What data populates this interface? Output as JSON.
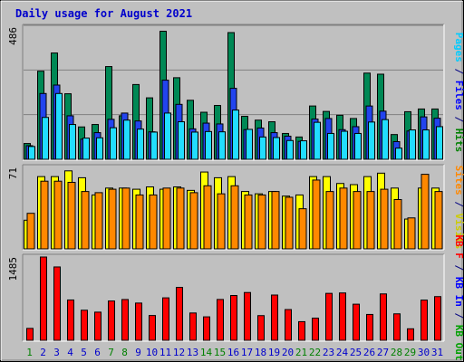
{
  "title": "Daily usage for August 2021",
  "colors": {
    "background": "#c0c0c0",
    "title": "#0000cc",
    "hits": "#006633",
    "hits_fill": "#008855",
    "files": "#0000ff",
    "files_fill": "#2244ee",
    "pages": "#00ccff",
    "pages_fill": "#22ddff",
    "visits": "#ffff00",
    "sites": "#ff8800",
    "kbin": "#00a000",
    "kbout": "#0000ff",
    "kbf": "#ff0000",
    "weekend_day": "#008000",
    "weekday_day": "#0000cc"
  },
  "chart_data": [
    {
      "type": "bar",
      "panel": "hits-files-pages",
      "ymax_label": "486",
      "right_label_parts": [
        {
          "text": "Pages",
          "color": "#00ccff"
        },
        {
          "text": " / ",
          "color": "#000080"
        },
        {
          "text": "Files",
          "color": "#0000ff"
        },
        {
          "text": " / ",
          "color": "#000080"
        },
        {
          "text": "Hits",
          "color": "#008000"
        }
      ],
      "ymax": 486,
      "categories": [
        "1",
        "2",
        "3",
        "4",
        "5",
        "6",
        "7",
        "8",
        "9",
        "10",
        "11",
        "12",
        "13",
        "14",
        "15",
        "16",
        "17",
        "18",
        "19",
        "20",
        "21",
        "22",
        "23",
        "24",
        "25",
        "26",
        "27",
        "28",
        "29",
        "30",
        "31"
      ],
      "series": [
        {
          "name": "Hits",
          "values": [
            58,
            324,
            391,
            241,
            119,
            128,
            341,
            160,
            275,
            226,
            471,
            300,
            217,
            173,
            198,
            466,
            158,
            144,
            138,
            95,
            82,
            196,
            176,
            162,
            150,
            317,
            313,
            91,
            175,
            185,
            185
          ]
        },
        {
          "name": "Files",
          "values": [
            50,
            242,
            273,
            160,
            74,
            98,
            147,
            170,
            141,
            101,
            291,
            202,
            112,
            133,
            130,
            261,
            109,
            115,
            98,
            85,
            66,
            148,
            150,
            109,
            120,
            196,
            177,
            65,
            104,
            156,
            151
          ]
        },
        {
          "name": "Pages",
          "values": [
            47,
            154,
            242,
            128,
            78,
            79,
            116,
            144,
            111,
            100,
            170,
            138,
            100,
            102,
            101,
            181,
            110,
            82,
            80,
            69,
            68,
            136,
            95,
            103,
            95,
            137,
            146,
            41,
            108,
            108,
            120
          ]
        }
      ]
    },
    {
      "type": "bar",
      "panel": "visits-sites",
      "ymax_label": "71",
      "right_label_parts": [
        {
          "text": "Sites",
          "color": "#ff8800"
        },
        {
          "text": " / ",
          "color": "#000080"
        },
        {
          "text": "Visits",
          "color": "#cccc00"
        }
      ],
      "ymax": 71,
      "categories": [
        "1",
        "2",
        "3",
        "4",
        "5",
        "6",
        "7",
        "8",
        "9",
        "10",
        "11",
        "12",
        "13",
        "14",
        "15",
        "16",
        "17",
        "18",
        "19",
        "20",
        "21",
        "22",
        "23",
        "24",
        "25",
        "26",
        "27",
        "28",
        "29",
        "30",
        "31"
      ],
      "series": [
        {
          "name": "Visits",
          "values": [
            25,
            63,
            63,
            68,
            62,
            47,
            53,
            53,
            52,
            54,
            52,
            54,
            51,
            67,
            62,
            63,
            50,
            48,
            50,
            46,
            47,
            63,
            63,
            57,
            56,
            63,
            66,
            53,
            26,
            53,
            53
          ]
        },
        {
          "name": "Sites",
          "values": [
            31,
            59,
            59,
            58,
            50,
            49,
            52,
            53,
            47,
            47,
            53,
            53,
            49,
            55,
            48,
            55,
            47,
            47,
            50,
            45,
            35,
            60,
            50,
            53,
            50,
            50,
            52,
            43,
            27,
            65,
            50
          ]
        }
      ]
    },
    {
      "type": "bar",
      "panel": "kbytes",
      "ymax_label": "1485",
      "right_label_parts": [
        {
          "text": "KB F",
          "color": "#ff0000"
        },
        {
          "text": " / ",
          "color": "#000080"
        },
        {
          "text": "KB In",
          "color": "#0000ff"
        },
        {
          "text": " / ",
          "color": "#000080"
        },
        {
          "text": "KB Out",
          "color": "#00a000"
        }
      ],
      "ymax": 1485,
      "categories": [
        "1",
        "2",
        "3",
        "4",
        "5",
        "6",
        "7",
        "8",
        "9",
        "10",
        "11",
        "12",
        "13",
        "14",
        "15",
        "16",
        "17",
        "18",
        "19",
        "20",
        "21",
        "22",
        "23",
        "24",
        "25",
        "26",
        "27",
        "28",
        "29",
        "30",
        "31"
      ],
      "series": [
        {
          "name": "KB F",
          "values": [
            212,
            1485,
            1308,
            719,
            536,
            502,
            701,
            727,
            664,
            442,
            757,
            943,
            487,
            418,
            728,
            799,
            852,
            440,
            807,
            548,
            332,
            395,
            837,
            844,
            644,
            461,
            827,
            472,
            205,
            717,
            779
          ]
        }
      ]
    }
  ],
  "day_labels": [
    "1",
    "2",
    "3",
    "4",
    "5",
    "6",
    "7",
    "8",
    "9",
    "10",
    "11",
    "12",
    "13",
    "14",
    "15",
    "16",
    "17",
    "18",
    "19",
    "20",
    "21",
    "22",
    "23",
    "24",
    "25",
    "26",
    "27",
    "28",
    "29",
    "30",
    "31"
  ],
  "weekend_days": [
    1,
    7,
    8,
    14,
    15,
    21,
    22,
    28,
    29
  ]
}
